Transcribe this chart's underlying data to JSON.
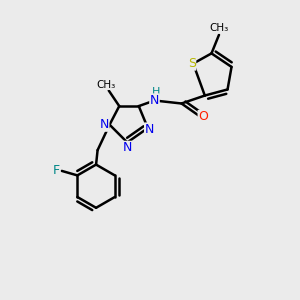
{
  "bg_color": "#ebebeb",
  "bond_color": "#000000",
  "bond_width": 1.8,
  "atoms": {
    "S": {
      "color": "#b8b800",
      "size": 9
    },
    "N": {
      "color": "#0000ee",
      "size": 9
    },
    "O": {
      "color": "#ff2000",
      "size": 9
    },
    "F": {
      "color": "#008888",
      "size": 9
    },
    "H": {
      "color": "#008888",
      "size": 8
    },
    "CH3": {
      "color": "#000000",
      "size": 7.5
    }
  },
  "figsize": [
    3.0,
    3.0
  ],
  "dpi": 100
}
